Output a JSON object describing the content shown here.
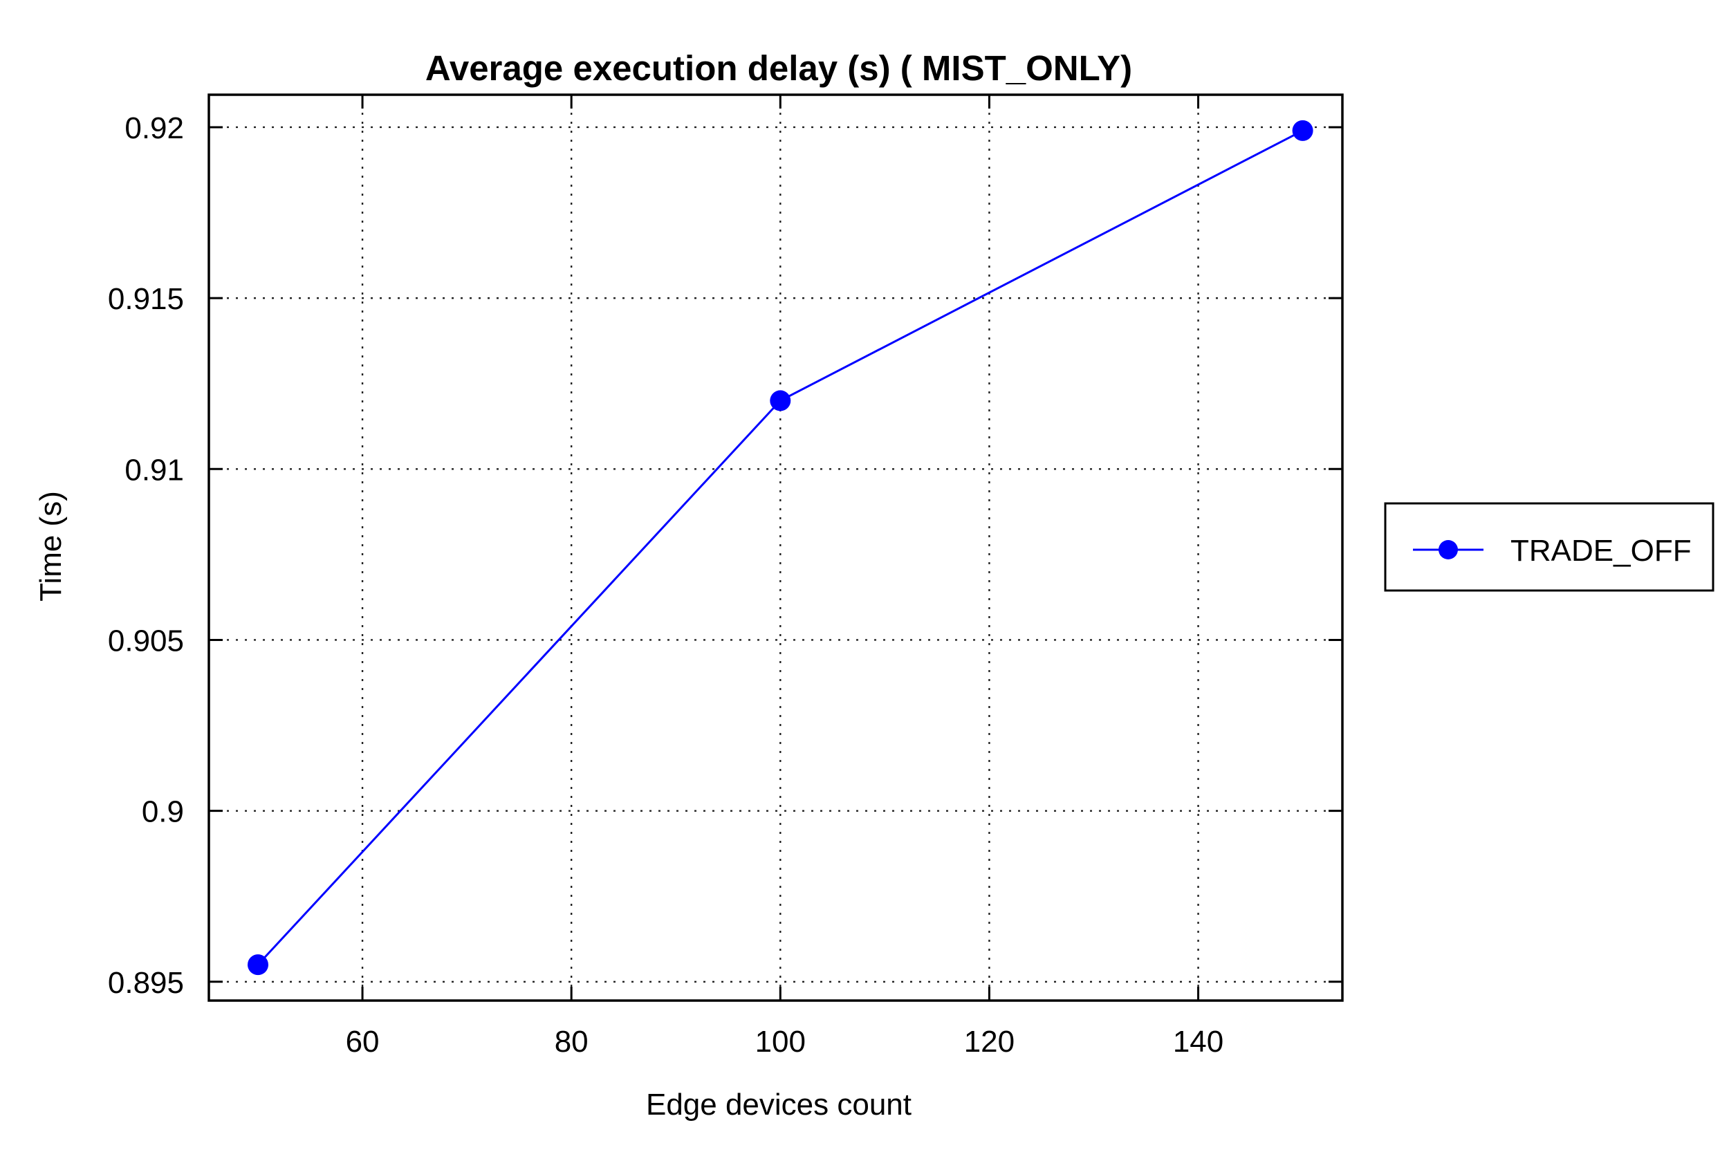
{
  "chart_data": {
    "type": "line",
    "title": "Average execution delay (s) ( MIST_ONLY)",
    "xlabel": "Edge devices count",
    "ylabel": "Time (s)",
    "xlim": [
      45.3,
      153.8
    ],
    "ylim": [
      0.89445,
      0.92095
    ],
    "xticks": [
      60,
      80,
      100,
      120,
      140
    ],
    "yticks": [
      0.895,
      0.9,
      0.905,
      0.91,
      0.915,
      0.92
    ],
    "xtick_labels": [
      "60",
      "80",
      "100",
      "120",
      "140"
    ],
    "ytick_labels": [
      "0.895",
      "0.9",
      "0.905",
      "0.91",
      "0.915",
      "0.92"
    ],
    "grid": true,
    "legend_position": "right",
    "series": [
      {
        "name": "TRADE_OFF",
        "color": "#0000ff",
        "marker": "circle",
        "x": [
          50,
          100,
          150
        ],
        "y": [
          0.8955,
          0.912,
          0.9199
        ]
      }
    ]
  }
}
